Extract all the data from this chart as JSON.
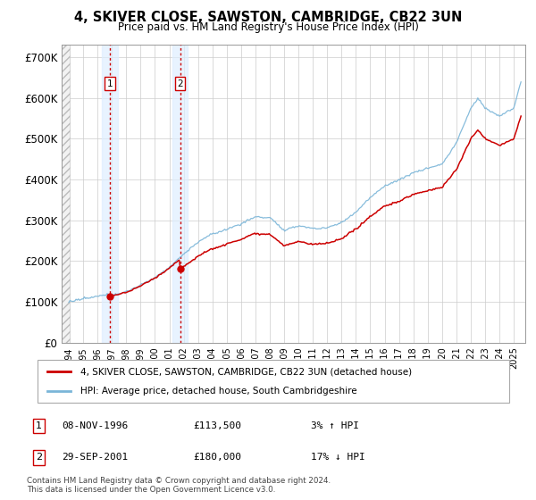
{
  "title": "4, SKIVER CLOSE, SAWSTON, CAMBRIDGE, CB22 3UN",
  "subtitle": "Price paid vs. HM Land Registry's House Price Index (HPI)",
  "legend_line1": "4, SKIVER CLOSE, SAWSTON, CAMBRIDGE, CB22 3UN (detached house)",
  "legend_line2": "HPI: Average price, detached house, South Cambridgeshire",
  "annotation1_label": "1",
  "annotation1_date": "08-NOV-1996",
  "annotation1_price": "£113,500",
  "annotation1_hpi": "3% ↑ HPI",
  "annotation2_label": "2",
  "annotation2_date": "29-SEP-2001",
  "annotation2_price": "£180,000",
  "annotation2_hpi": "17% ↓ HPI",
  "footer": "Contains HM Land Registry data © Crown copyright and database right 2024.\nThis data is licensed under the Open Government Licence v3.0.",
  "sale1_year": 1996.85,
  "sale1_price": 113500,
  "sale2_year": 2001.75,
  "sale2_price": 180000,
  "hpi_color": "#7ab5d8",
  "price_color": "#cc0000",
  "ylim": [
    0,
    730000
  ],
  "yticks": [
    0,
    100000,
    200000,
    300000,
    400000,
    500000,
    600000,
    700000
  ],
  "yticklabels": [
    "£0",
    "£100K",
    "£200K",
    "£300K",
    "£400K",
    "£500K",
    "£600K",
    "£700K"
  ]
}
